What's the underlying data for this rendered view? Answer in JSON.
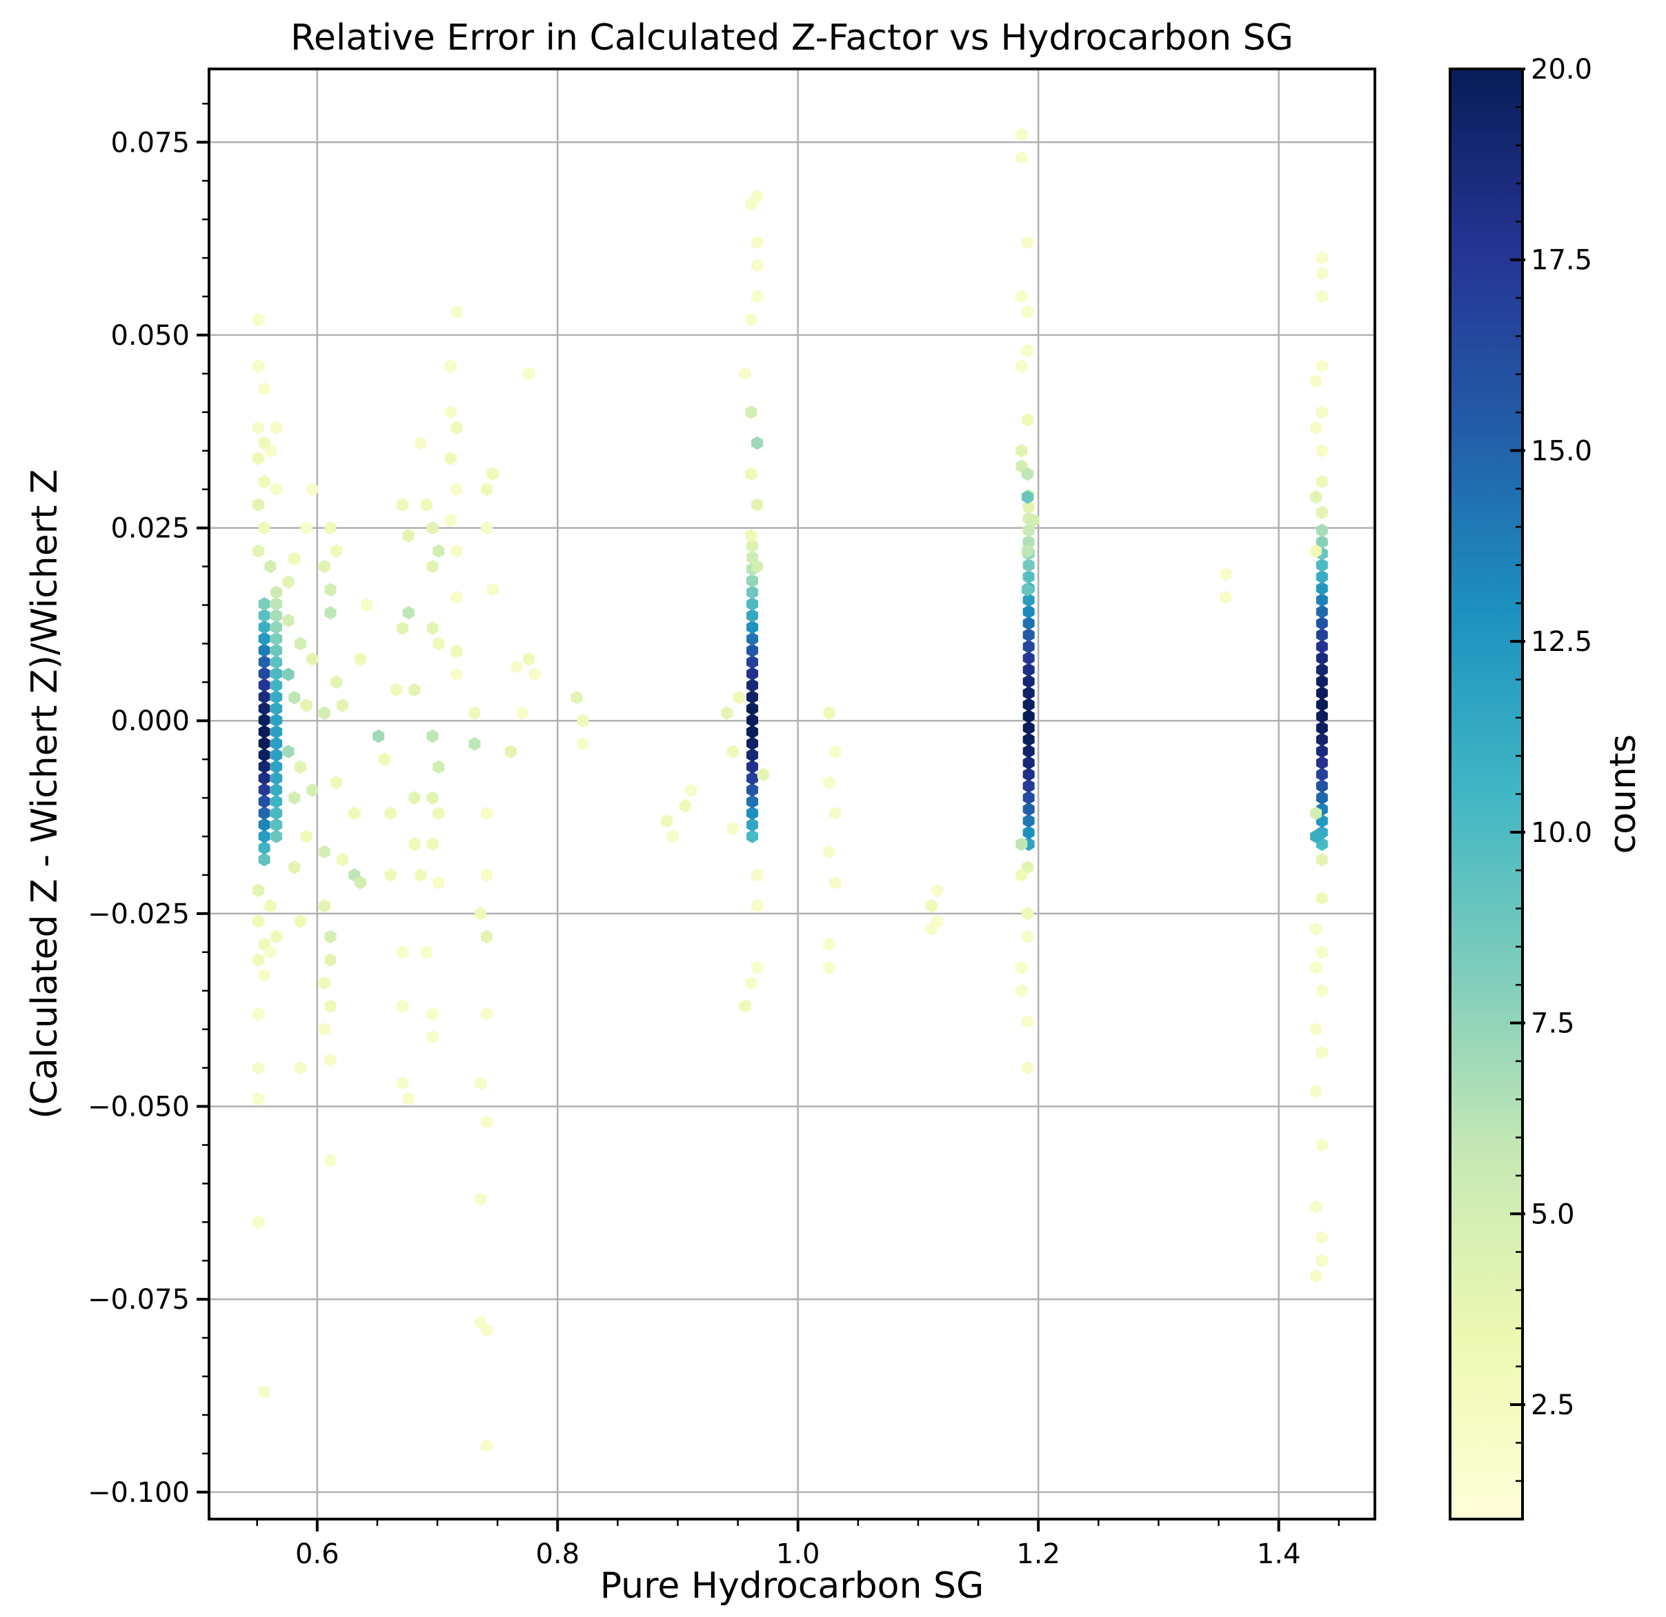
{
  "chart_data": {
    "type": "hexbin",
    "title": "Relative Error in Calculated Z-Factor vs Hydrocarbon SG",
    "xlabel": "Pure Hydrocarbon SG",
    "ylabel": "(Calculated Z - Wichert Z)/Wichert Z",
    "xlim": [
      0.51,
      1.48
    ],
    "ylim": [
      -0.1035,
      0.0845
    ],
    "xticks": [
      0.6,
      0.8,
      1.0,
      1.2,
      1.4
    ],
    "xtick_labels": [
      "0.6",
      "0.8",
      "1.0",
      "1.2",
      "1.4"
    ],
    "yticks": [
      0.075,
      0.05,
      0.025,
      0.0,
      -0.025,
      -0.05,
      -0.075,
      -0.1
    ],
    "ytick_labels": [
      "0.075",
      "0.050",
      "0.025",
      "0.000",
      "−0.025",
      "−0.050",
      "−0.075",
      "−0.100"
    ],
    "grid": true,
    "colormap": "YlGnBu",
    "colorbar": {
      "label": "counts",
      "range": [
        1,
        20
      ],
      "ticks": [
        2.5,
        5.0,
        7.5,
        10.0,
        12.5,
        15.0,
        17.5,
        20.0
      ],
      "tick_labels": [
        "2.5",
        "5.0",
        "7.5",
        "10.0",
        "12.5",
        "15.0",
        "17.5",
        "20.0"
      ]
    },
    "columns": [
      {
        "x": 0.556,
        "ymin": -0.018,
        "ymax": 0.016,
        "peak": 20,
        "center": -0.002,
        "spread": 0.01
      },
      {
        "x": 0.566,
        "ymin": -0.015,
        "ymax": 0.018,
        "peak": 12,
        "center": -0.003,
        "spread": 0.012
      },
      {
        "x": 0.962,
        "ymin": -0.015,
        "ymax": 0.023,
        "peak": 20,
        "center": 0.0,
        "spread": 0.01
      },
      {
        "x": 1.192,
        "ymin": -0.016,
        "ymax": 0.03,
        "peak": 20,
        "center": 0.0,
        "spread": 0.012
      },
      {
        "x": 1.436,
        "ymin": -0.016,
        "ymax": 0.025,
        "peak": 20,
        "center": 0.002,
        "spread": 0.012
      }
    ],
    "points": [
      {
        "x": 0.551,
        "y": 0.052,
        "c": 2
      },
      {
        "x": 0.551,
        "y": 0.046,
        "c": 2
      },
      {
        "x": 0.556,
        "y": 0.043,
        "c": 2
      },
      {
        "x": 0.551,
        "y": 0.038,
        "c": 2
      },
      {
        "x": 0.556,
        "y": 0.036,
        "c": 3
      },
      {
        "x": 0.551,
        "y": 0.034,
        "c": 3
      },
      {
        "x": 0.556,
        "y": 0.031,
        "c": 3
      },
      {
        "x": 0.551,
        "y": 0.028,
        "c": 4
      },
      {
        "x": 0.556,
        "y": 0.025,
        "c": 3
      },
      {
        "x": 0.551,
        "y": 0.022,
        "c": 4
      },
      {
        "x": 0.561,
        "y": 0.02,
        "c": 5
      },
      {
        "x": 0.566,
        "y": 0.038,
        "c": 2
      },
      {
        "x": 0.561,
        "y": 0.035,
        "c": 2
      },
      {
        "x": 0.566,
        "y": 0.03,
        "c": 2
      },
      {
        "x": 0.551,
        "y": -0.022,
        "c": 4
      },
      {
        "x": 0.551,
        "y": -0.026,
        "c": 3
      },
      {
        "x": 0.556,
        "y": -0.029,
        "c": 3
      },
      {
        "x": 0.551,
        "y": -0.031,
        "c": 3
      },
      {
        "x": 0.556,
        "y": -0.033,
        "c": 2
      },
      {
        "x": 0.551,
        "y": -0.038,
        "c": 2
      },
      {
        "x": 0.551,
        "y": -0.045,
        "c": 2
      },
      {
        "x": 0.551,
        "y": -0.049,
        "c": 2
      },
      {
        "x": 0.551,
        "y": -0.065,
        "c": 2
      },
      {
        "x": 0.556,
        "y": -0.087,
        "c": 2
      },
      {
        "x": 0.561,
        "y": -0.024,
        "c": 3
      },
      {
        "x": 0.566,
        "y": -0.028,
        "c": 3
      },
      {
        "x": 0.561,
        "y": -0.03,
        "c": 2
      },
      {
        "x": 0.576,
        "y": 0.013,
        "c": 5
      },
      {
        "x": 0.576,
        "y": 0.006,
        "c": 8
      },
      {
        "x": 0.581,
        "y": 0.003,
        "c": 6
      },
      {
        "x": 0.576,
        "y": -0.004,
        "c": 7
      },
      {
        "x": 0.581,
        "y": -0.01,
        "c": 5
      },
      {
        "x": 0.576,
        "y": 0.018,
        "c": 4
      },
      {
        "x": 0.586,
        "y": 0.01,
        "c": 5
      },
      {
        "x": 0.586,
        "y": -0.006,
        "c": 4
      },
      {
        "x": 0.591,
        "y": 0.002,
        "c": 4
      },
      {
        "x": 0.581,
        "y": -0.019,
        "c": 4
      },
      {
        "x": 0.591,
        "y": -0.015,
        "c": 3
      },
      {
        "x": 0.596,
        "y": 0.008,
        "c": 4
      },
      {
        "x": 0.596,
        "y": -0.009,
        "c": 5
      },
      {
        "x": 0.581,
        "y": 0.021,
        "c": 3
      },
      {
        "x": 0.591,
        "y": 0.025,
        "c": 2
      },
      {
        "x": 0.596,
        "y": 0.03,
        "c": 2
      },
      {
        "x": 0.586,
        "y": -0.045,
        "c": 2
      },
      {
        "x": 0.586,
        "y": -0.026,
        "c": 3
      },
      {
        "x": 0.606,
        "y": 0.001,
        "c": 5
      },
      {
        "x": 0.611,
        "y": 0.014,
        "c": 6
      },
      {
        "x": 0.611,
        "y": 0.017,
        "c": 5
      },
      {
        "x": 0.606,
        "y": 0.02,
        "c": 4
      },
      {
        "x": 0.611,
        "y": 0.025,
        "c": 3
      },
      {
        "x": 0.606,
        "y": -0.017,
        "c": 5
      },
      {
        "x": 0.606,
        "y": -0.024,
        "c": 4
      },
      {
        "x": 0.611,
        "y": -0.028,
        "c": 5
      },
      {
        "x": 0.611,
        "y": -0.031,
        "c": 4
      },
      {
        "x": 0.606,
        "y": -0.034,
        "c": 3
      },
      {
        "x": 0.611,
        "y": -0.037,
        "c": 3
      },
      {
        "x": 0.606,
        "y": -0.04,
        "c": 2
      },
      {
        "x": 0.611,
        "y": -0.044,
        "c": 2
      },
      {
        "x": 0.611,
        "y": -0.057,
        "c": 2
      },
      {
        "x": 0.616,
        "y": 0.005,
        "c": 4
      },
      {
        "x": 0.621,
        "y": 0.002,
        "c": 4
      },
      {
        "x": 0.616,
        "y": -0.008,
        "c": 3
      },
      {
        "x": 0.621,
        "y": -0.018,
        "c": 3
      },
      {
        "x": 0.616,
        "y": 0.022,
        "c": 3
      },
      {
        "x": 0.631,
        "y": -0.02,
        "c": 6
      },
      {
        "x": 0.636,
        "y": -0.021,
        "c": 5
      },
      {
        "x": 0.631,
        "y": -0.012,
        "c": 3
      },
      {
        "x": 0.636,
        "y": 0.008,
        "c": 3
      },
      {
        "x": 0.641,
        "y": 0.015,
        "c": 2
      },
      {
        "x": 0.651,
        "y": -0.002,
        "c": 7
      },
      {
        "x": 0.656,
        "y": -0.005,
        "c": 3
      },
      {
        "x": 0.661,
        "y": -0.012,
        "c": 3
      },
      {
        "x": 0.666,
        "y": 0.004,
        "c": 3
      },
      {
        "x": 0.661,
        "y": -0.02,
        "c": 3
      },
      {
        "x": 0.671,
        "y": -0.03,
        "c": 2
      },
      {
        "x": 0.671,
        "y": -0.037,
        "c": 2
      },
      {
        "x": 0.671,
        "y": -0.047,
        "c": 2
      },
      {
        "x": 0.676,
        "y": -0.049,
        "c": 2
      },
      {
        "x": 0.671,
        "y": 0.028,
        "c": 3
      },
      {
        "x": 0.676,
        "y": 0.024,
        "c": 4
      },
      {
        "x": 0.671,
        "y": 0.012,
        "c": 4
      },
      {
        "x": 0.676,
        "y": 0.014,
        "c": 6
      },
      {
        "x": 0.681,
        "y": 0.004,
        "c": 4
      },
      {
        "x": 0.686,
        "y": 0.036,
        "c": 2
      },
      {
        "x": 0.681,
        "y": -0.01,
        "c": 4
      },
      {
        "x": 0.681,
        "y": -0.016,
        "c": 3
      },
      {
        "x": 0.686,
        "y": -0.02,
        "c": 3
      },
      {
        "x": 0.691,
        "y": 0.028,
        "c": 3
      },
      {
        "x": 0.696,
        "y": 0.025,
        "c": 4
      },
      {
        "x": 0.696,
        "y": 0.02,
        "c": 4
      },
      {
        "x": 0.701,
        "y": 0.022,
        "c": 5
      },
      {
        "x": 0.696,
        "y": 0.012,
        "c": 4
      },
      {
        "x": 0.701,
        "y": 0.01,
        "c": 3
      },
      {
        "x": 0.696,
        "y": -0.002,
        "c": 6
      },
      {
        "x": 0.701,
        "y": -0.006,
        "c": 5
      },
      {
        "x": 0.696,
        "y": -0.01,
        "c": 4
      },
      {
        "x": 0.701,
        "y": -0.012,
        "c": 3
      },
      {
        "x": 0.696,
        "y": -0.016,
        "c": 3
      },
      {
        "x": 0.691,
        "y": -0.03,
        "c": 2
      },
      {
        "x": 0.696,
        "y": -0.038,
        "c": 2
      },
      {
        "x": 0.696,
        "y": -0.041,
        "c": 2
      },
      {
        "x": 0.701,
        "y": -0.021,
        "c": 2
      },
      {
        "x": 0.711,
        "y": 0.046,
        "c": 2
      },
      {
        "x": 0.711,
        "y": 0.04,
        "c": 2
      },
      {
        "x": 0.716,
        "y": 0.038,
        "c": 3
      },
      {
        "x": 0.716,
        "y": 0.053,
        "c": 2
      },
      {
        "x": 0.711,
        "y": 0.034,
        "c": 3
      },
      {
        "x": 0.716,
        "y": 0.03,
        "c": 2
      },
      {
        "x": 0.711,
        "y": 0.026,
        "c": 2
      },
      {
        "x": 0.716,
        "y": 0.022,
        "c": 2
      },
      {
        "x": 0.716,
        "y": 0.016,
        "c": 2
      },
      {
        "x": 0.716,
        "y": 0.009,
        "c": 3
      },
      {
        "x": 0.716,
        "y": 0.006,
        "c": 2
      },
      {
        "x": 0.731,
        "y": -0.003,
        "c": 6
      },
      {
        "x": 0.731,
        "y": 0.001,
        "c": 3
      },
      {
        "x": 0.741,
        "y": 0.03,
        "c": 3
      },
      {
        "x": 0.746,
        "y": 0.032,
        "c": 3
      },
      {
        "x": 0.741,
        "y": 0.025,
        "c": 2
      },
      {
        "x": 0.746,
        "y": 0.017,
        "c": 2
      },
      {
        "x": 0.741,
        "y": -0.012,
        "c": 2
      },
      {
        "x": 0.741,
        "y": -0.02,
        "c": 2
      },
      {
        "x": 0.736,
        "y": -0.025,
        "c": 3
      },
      {
        "x": 0.741,
        "y": -0.028,
        "c": 4
      },
      {
        "x": 0.741,
        "y": -0.038,
        "c": 2
      },
      {
        "x": 0.736,
        "y": -0.047,
        "c": 2
      },
      {
        "x": 0.741,
        "y": -0.052,
        "c": 2
      },
      {
        "x": 0.736,
        "y": -0.062,
        "c": 2
      },
      {
        "x": 0.736,
        "y": -0.078,
        "c": 2
      },
      {
        "x": 0.741,
        "y": -0.079,
        "c": 2
      },
      {
        "x": 0.741,
        "y": -0.094,
        "c": 2
      },
      {
        "x": 0.761,
        "y": -0.004,
        "c": 4
      },
      {
        "x": 0.766,
        "y": 0.007,
        "c": 2
      },
      {
        "x": 0.771,
        "y": 0.001,
        "c": 2
      },
      {
        "x": 0.776,
        "y": 0.008,
        "c": 3
      },
      {
        "x": 0.781,
        "y": 0.006,
        "c": 2
      },
      {
        "x": 0.776,
        "y": 0.045,
        "c": 2
      },
      {
        "x": 0.816,
        "y": 0.003,
        "c": 4
      },
      {
        "x": 0.821,
        "y": 0.0,
        "c": 3
      },
      {
        "x": 0.821,
        "y": -0.003,
        "c": 2
      },
      {
        "x": 0.891,
        "y": -0.013,
        "c": 3
      },
      {
        "x": 0.896,
        "y": -0.015,
        "c": 2
      },
      {
        "x": 0.906,
        "y": -0.011,
        "c": 3
      },
      {
        "x": 0.911,
        "y": -0.009,
        "c": 2
      },
      {
        "x": 0.941,
        "y": 0.001,
        "c": 4
      },
      {
        "x": 0.946,
        "y": -0.004,
        "c": 3
      },
      {
        "x": 0.946,
        "y": -0.014,
        "c": 2
      },
      {
        "x": 0.951,
        "y": 0.003,
        "c": 3
      },
      {
        "x": 0.956,
        "y": 0.045,
        "c": 2
      },
      {
        "x": 0.961,
        "y": 0.04,
        "c": 5
      },
      {
        "x": 0.966,
        "y": 0.036,
        "c": 7
      },
      {
        "x": 0.961,
        "y": 0.032,
        "c": 3
      },
      {
        "x": 0.966,
        "y": 0.028,
        "c": 4
      },
      {
        "x": 0.961,
        "y": 0.024,
        "c": 3
      },
      {
        "x": 0.966,
        "y": 0.02,
        "c": 5
      },
      {
        "x": 0.961,
        "y": 0.052,
        "c": 2
      },
      {
        "x": 0.966,
        "y": 0.055,
        "c": 2
      },
      {
        "x": 0.961,
        "y": 0.067,
        "c": 2
      },
      {
        "x": 0.966,
        "y": 0.068,
        "c": 2
      },
      {
        "x": 0.966,
        "y": 0.062,
        "c": 2
      },
      {
        "x": 0.966,
        "y": 0.059,
        "c": 2
      },
      {
        "x": 0.971,
        "y": -0.007,
        "c": 4
      },
      {
        "x": 0.966,
        "y": -0.02,
        "c": 2
      },
      {
        "x": 0.961,
        "y": -0.034,
        "c": 2
      },
      {
        "x": 0.966,
        "y": -0.032,
        "c": 2
      },
      {
        "x": 0.956,
        "y": -0.037,
        "c": 3
      },
      {
        "x": 0.966,
        "y": -0.024,
        "c": 2
      },
      {
        "x": 1.026,
        "y": 0.001,
        "c": 3
      },
      {
        "x": 1.031,
        "y": -0.004,
        "c": 2
      },
      {
        "x": 1.026,
        "y": -0.008,
        "c": 2
      },
      {
        "x": 1.031,
        "y": -0.012,
        "c": 2
      },
      {
        "x": 1.026,
        "y": -0.017,
        "c": 2
      },
      {
        "x": 1.031,
        "y": -0.021,
        "c": 2
      },
      {
        "x": 1.026,
        "y": -0.029,
        "c": 2
      },
      {
        "x": 1.026,
        "y": -0.032,
        "c": 2
      },
      {
        "x": 1.111,
        "y": -0.024,
        "c": 3
      },
      {
        "x": 1.116,
        "y": -0.026,
        "c": 2
      },
      {
        "x": 1.111,
        "y": -0.027,
        "c": 2
      },
      {
        "x": 1.116,
        "y": -0.022,
        "c": 2
      },
      {
        "x": 1.186,
        "y": 0.076,
        "c": 2
      },
      {
        "x": 1.186,
        "y": 0.073,
        "c": 2
      },
      {
        "x": 1.191,
        "y": 0.062,
        "c": 2
      },
      {
        "x": 1.186,
        "y": 0.055,
        "c": 2
      },
      {
        "x": 1.191,
        "y": 0.053,
        "c": 2
      },
      {
        "x": 1.186,
        "y": 0.046,
        "c": 2
      },
      {
        "x": 1.191,
        "y": 0.048,
        "c": 2
      },
      {
        "x": 1.191,
        "y": 0.039,
        "c": 3
      },
      {
        "x": 1.186,
        "y": 0.035,
        "c": 4
      },
      {
        "x": 1.186,
        "y": 0.033,
        "c": 5
      },
      {
        "x": 1.191,
        "y": 0.032,
        "c": 6
      },
      {
        "x": 1.191,
        "y": 0.029,
        "c": 9
      },
      {
        "x": 1.196,
        "y": 0.026,
        "c": 5
      },
      {
        "x": 1.191,
        "y": 0.022,
        "c": 6
      },
      {
        "x": 1.191,
        "y": 0.017,
        "c": 9
      },
      {
        "x": 1.186,
        "y": -0.016,
        "c": 6
      },
      {
        "x": 1.191,
        "y": -0.019,
        "c": 4
      },
      {
        "x": 1.186,
        "y": -0.02,
        "c": 3
      },
      {
        "x": 1.191,
        "y": -0.025,
        "c": 3
      },
      {
        "x": 1.191,
        "y": -0.028,
        "c": 2
      },
      {
        "x": 1.186,
        "y": -0.032,
        "c": 2
      },
      {
        "x": 1.186,
        "y": -0.035,
        "c": 2
      },
      {
        "x": 1.191,
        "y": -0.039,
        "c": 2
      },
      {
        "x": 1.191,
        "y": -0.045,
        "c": 2
      },
      {
        "x": 1.356,
        "y": 0.019,
        "c": 2
      },
      {
        "x": 1.356,
        "y": 0.016,
        "c": 2
      },
      {
        "x": 1.436,
        "y": 0.06,
        "c": 2
      },
      {
        "x": 1.436,
        "y": 0.058,
        "c": 2
      },
      {
        "x": 1.436,
        "y": 0.055,
        "c": 2
      },
      {
        "x": 1.431,
        "y": 0.044,
        "c": 2
      },
      {
        "x": 1.436,
        "y": 0.046,
        "c": 2
      },
      {
        "x": 1.436,
        "y": 0.04,
        "c": 2
      },
      {
        "x": 1.431,
        "y": 0.038,
        "c": 2
      },
      {
        "x": 1.436,
        "y": 0.035,
        "c": 2
      },
      {
        "x": 1.431,
        "y": 0.029,
        "c": 4
      },
      {
        "x": 1.436,
        "y": 0.031,
        "c": 3
      },
      {
        "x": 1.436,
        "y": 0.027,
        "c": 4
      },
      {
        "x": 1.431,
        "y": 0.022,
        "c": 3
      },
      {
        "x": 1.431,
        "y": -0.012,
        "c": 5
      },
      {
        "x": 1.431,
        "y": -0.015,
        "c": 11
      },
      {
        "x": 1.436,
        "y": -0.018,
        "c": 4
      },
      {
        "x": 1.436,
        "y": -0.023,
        "c": 3
      },
      {
        "x": 1.431,
        "y": -0.027,
        "c": 2
      },
      {
        "x": 1.436,
        "y": -0.03,
        "c": 2
      },
      {
        "x": 1.431,
        "y": -0.032,
        "c": 2
      },
      {
        "x": 1.436,
        "y": -0.035,
        "c": 2
      },
      {
        "x": 1.431,
        "y": -0.04,
        "c": 2
      },
      {
        "x": 1.436,
        "y": -0.043,
        "c": 2
      },
      {
        "x": 1.431,
        "y": -0.048,
        "c": 2
      },
      {
        "x": 1.436,
        "y": -0.055,
        "c": 2
      },
      {
        "x": 1.431,
        "y": -0.063,
        "c": 2
      },
      {
        "x": 1.436,
        "y": -0.067,
        "c": 2
      },
      {
        "x": 1.431,
        "y": -0.072,
        "c": 2
      },
      {
        "x": 1.436,
        "y": -0.07,
        "c": 2
      }
    ]
  }
}
